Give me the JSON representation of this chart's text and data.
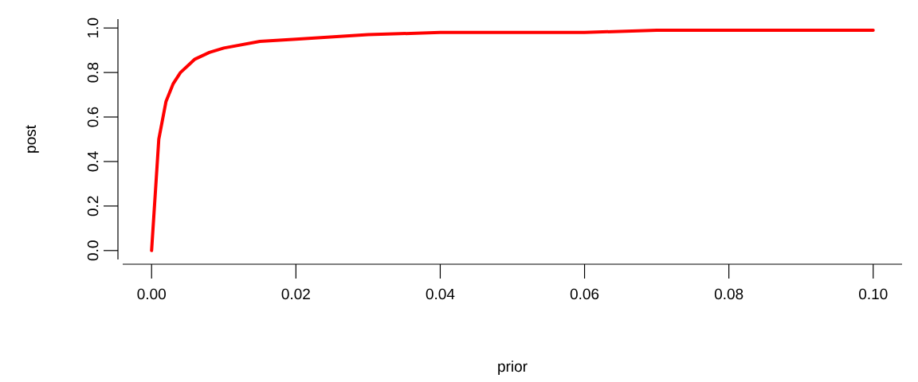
{
  "chart_data": {
    "type": "line",
    "xlabel": "prior",
    "ylabel": "post",
    "color": "#ff0000",
    "marker": "none",
    "line_style": "solid",
    "x": [
      0,
      0.001,
      0.002,
      0.003,
      0.004,
      0.005,
      0.006,
      0.008,
      0.01,
      0.015,
      0.02,
      0.03,
      0.04,
      0.05,
      0.06,
      0.07,
      0.08,
      0.09,
      0.1
    ],
    "values": [
      0,
      0.5,
      0.67,
      0.75,
      0.8,
      0.83,
      0.86,
      0.89,
      0.91,
      0.94,
      0.95,
      0.97,
      0.98,
      0.98,
      0.98,
      0.99,
      0.99,
      0.99,
      0.99
    ],
    "xlim": [
      -0.004,
      0.104
    ],
    "ylim": [
      -0.04,
      1.04
    ],
    "xticks": [
      {
        "value": 0,
        "label": "0.00"
      },
      {
        "value": 0.02,
        "label": "0.02"
      },
      {
        "value": 0.04,
        "label": "0.04"
      },
      {
        "value": 0.06,
        "label": "0.06"
      },
      {
        "value": 0.08,
        "label": "0.08"
      },
      {
        "value": 0.1,
        "label": "0.10"
      }
    ],
    "yticks": [
      {
        "value": 0,
        "label": "0.0"
      },
      {
        "value": 0.2,
        "label": "0.2"
      },
      {
        "value": 0.4,
        "label": "0.4"
      },
      {
        "value": 0.6,
        "label": "0.6"
      },
      {
        "value": 0.8,
        "label": "0.8"
      },
      {
        "value": 1,
        "label": "1.0"
      }
    ]
  }
}
